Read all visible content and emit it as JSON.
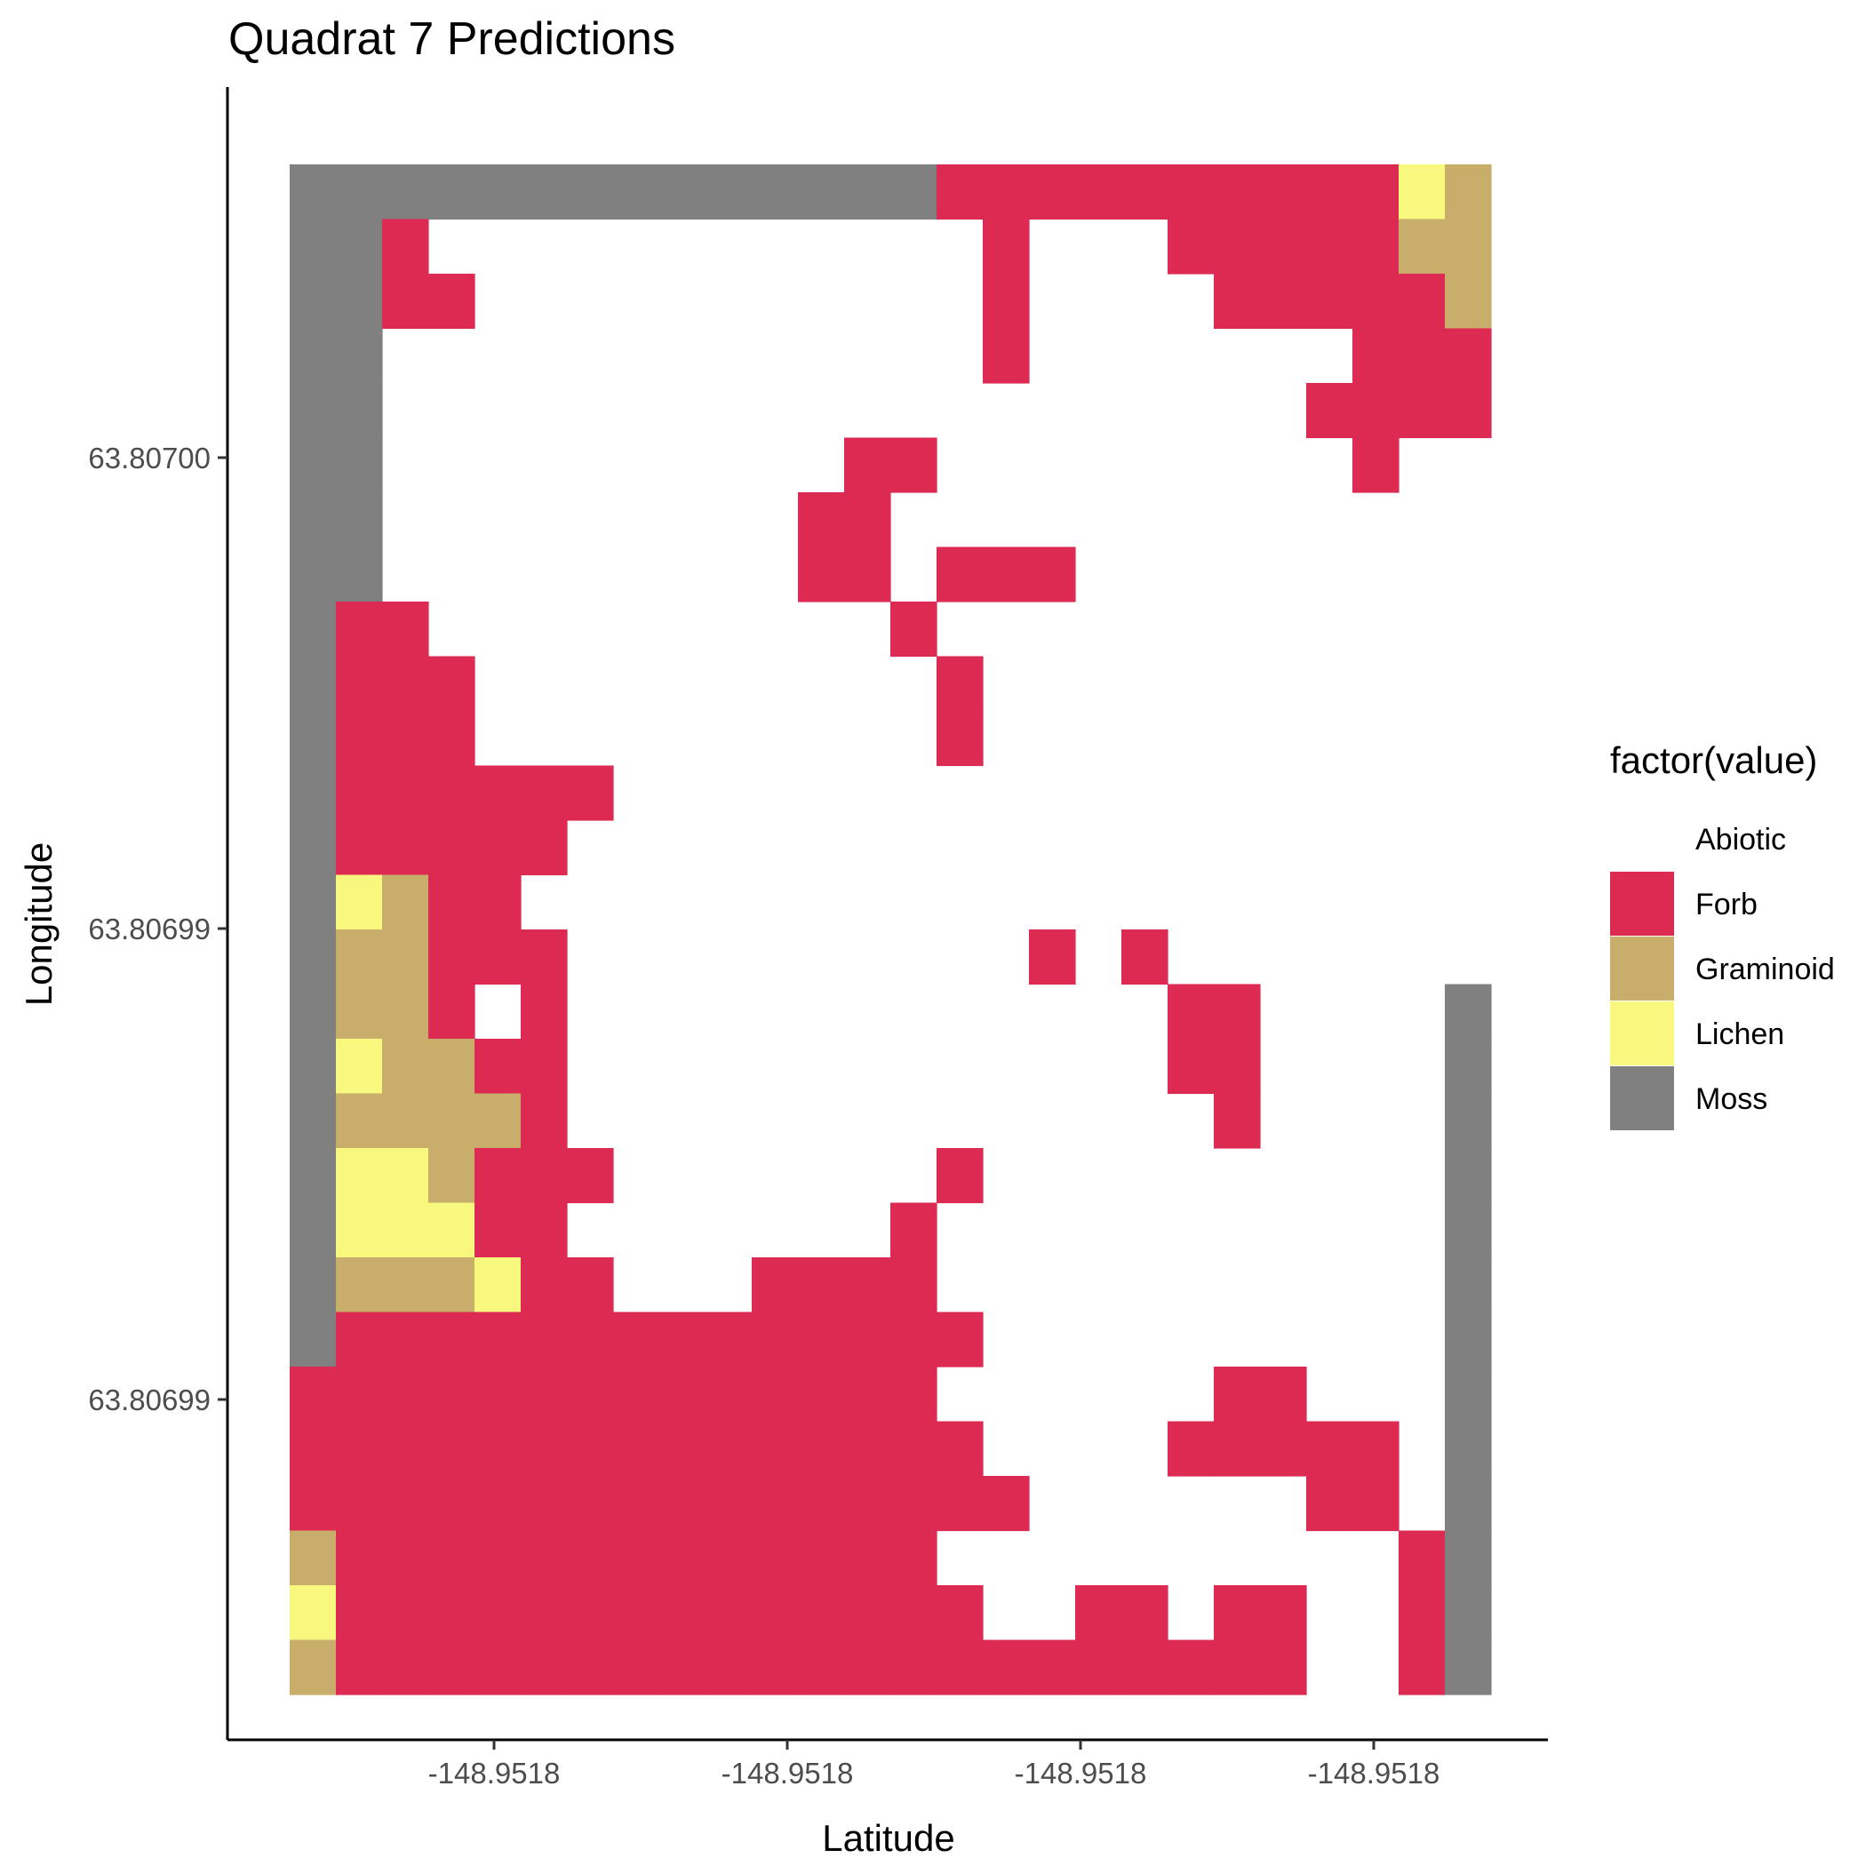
{
  "chart_data": {
    "type": "heatmap",
    "title": "Quadrat 7 Predictions",
    "xlabel": "Latitude",
    "ylabel": "Longitude",
    "x_tick_labels": [
      "-148.9518",
      "-148.9518",
      "-148.9518",
      "-148.9518"
    ],
    "y_tick_labels": [
      "63.80700",
      "63.80699",
      "63.80699"
    ],
    "grid": false,
    "legend_position": "right",
    "legend": {
      "title": "factor(value)",
      "entries": [
        {
          "label": "Abiotic",
          "color": "#FFFFFF"
        },
        {
          "label": "Forb",
          "color": "#DC2A53"
        },
        {
          "label": "Graminoid",
          "color": "#C8AD6B"
        },
        {
          "label": "Lichen",
          "color": "#F8F87E"
        },
        {
          "label": "Moss",
          "color": "#808080"
        }
      ]
    },
    "legend_codes": {
      "A": "Abiotic",
      "F": "Forb",
      "G": "Graminoid",
      "L": "Lichen",
      "M": "Moss"
    },
    "n_cols": 26,
    "n_rows": 28,
    "rows": [
      "MMMMMMMMMMMMMMFFFFFFFFFFLG",
      "MMFAAAAAAAAAAAAFAAAFFFFFGG",
      "MMFFAAAAAAAAAAAFAAAAFFFFFG",
      "MMAAAAAAAAAAAAAFAAAAAAAFFF",
      "MMAAAAAAAAAAAAAAAAAAAAFFFF",
      "MMAAAAAAAAAAFFAAAAAAAAAFAA",
      "MMAAAAAAAAAFFAAAAAAAAAAAAA",
      "MMAAAAAAAAAFFAFFFAAAAAAAAA",
      "MFFAAAAAAAAAAFAAAAAAAAAAAA",
      "MFFFAAAAAAAAAAFAAAAAAAAAAA",
      "MFFFAAAAAAAAAAFAAAAAAAAAAA",
      "MFFFFFFAAAAAAAAAAAAAAAAAAA",
      "MFFFFFAAAAAAAAAAAAAAAAAAAA",
      "MLGFFAAAAAAAAAAAAAAAAAAAAA",
      "MGGFFFAAAAAAAAAAFAFAAAAAAA",
      "MGGFAFAAAAAAAAAAAAAFFAAAAM",
      "MLGGFFAAAAAAAAAAAAAFFAAAAM",
      "MGGGGFAAAAAAAAAAAAAAFAAAAM",
      "MLLGFFFAAAAAAAFAAAAAAAAAAM",
      "MLLLFFAAAAAAAFAAAAAAAAAAAM",
      "MGGGLFFAAAFFFFAAAAAAAAAAAM",
      "MFFFFFFFFFFFFFFAAAAAAAAAAM",
      "FFFFFFFFFFFFFFAAAAAAFFAAAM",
      "FFFFFFFFFFFFFFFAAAAFFFFFAM",
      "FFFFFFFFFFFFFFFFAAAAAAFFAM",
      "GFFFFFFFFFFFFFAAAAAAAAAAFM",
      "LFFFFFFFFFFFFFFAAFFAFFAAFM",
      "GFFFFFFFFFFFFFFFFFFFFFAAFM"
    ]
  }
}
